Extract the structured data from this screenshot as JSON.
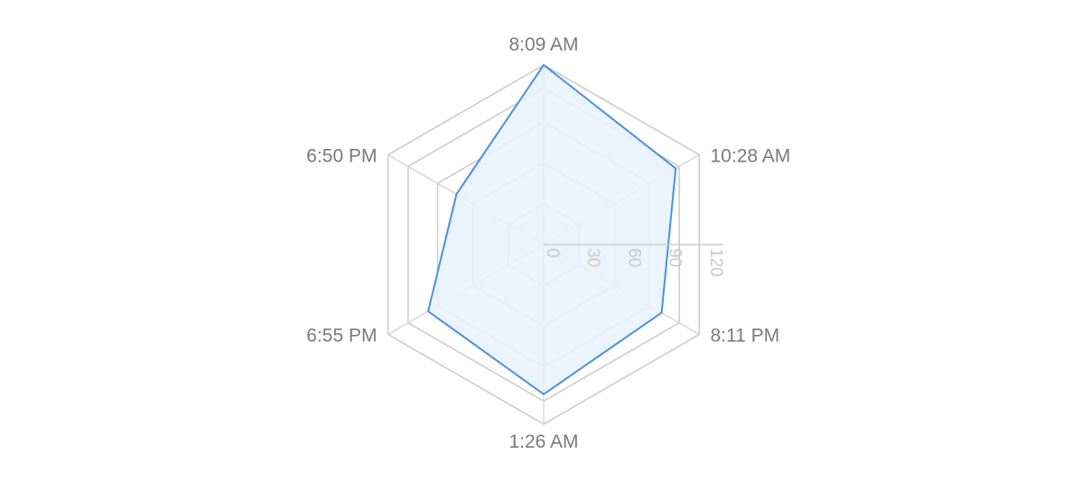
{
  "chart_data": {
    "type": "radar",
    "categories": [
      "8:09 AM",
      "10:28 AM",
      "8:11 PM",
      "1:26 AM",
      "6:55 PM",
      "6:50 PM"
    ],
    "series": [
      {
        "values": [
          132,
          112,
          100,
          110,
          98,
          74
        ]
      }
    ],
    "radial_axis": {
      "min": 0,
      "max": 132,
      "ticks": [
        0,
        30,
        60,
        90,
        120
      ],
      "tick_labels": [
        "0",
        "30",
        "60",
        "90",
        "120"
      ]
    },
    "grid_rings": [
      30,
      60,
      90,
      115
    ],
    "grid": true,
    "legend": "none",
    "colors": {
      "series_stroke": "#4a90e2",
      "series_fill": "#e7f1fb",
      "grid": "#cccccc",
      "axis_label": "#7a7a7a",
      "tick_label": "#c8c8c8"
    }
  }
}
